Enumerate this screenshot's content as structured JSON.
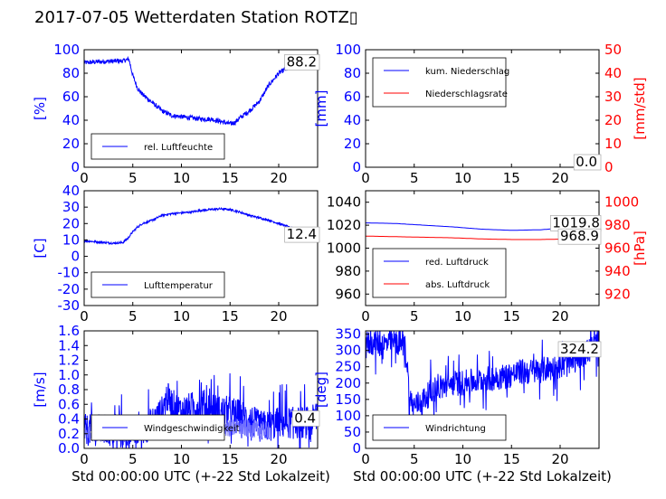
{
  "figure": {
    "title": "2017-07-05 Wetterdaten Station ROTZ▯"
  },
  "colors": {
    "blue": "#0000ff",
    "red": "#ff0000",
    "light_blue": "#7070ff"
  },
  "chart_data": [
    {
      "id": "humidity",
      "type": "line",
      "ylabel": "[%]",
      "xlabel": "",
      "xlim": [
        0,
        24
      ],
      "ylim": [
        0,
        100
      ],
      "xticks": [
        0,
        5,
        10,
        15,
        20
      ],
      "yticks": [
        0,
        20,
        40,
        60,
        80,
        100
      ],
      "ytick_color": "blue",
      "grid": false,
      "legend_position": "lower-left",
      "current_value_label": "88.2",
      "series": [
        {
          "name": "rel. Luftfeuchte",
          "color": "blue",
          "noise": 2,
          "x": [
            0,
            2,
            4,
            4.6,
            5,
            5.5,
            6,
            7,
            8,
            9,
            10,
            11,
            12,
            13,
            14,
            15,
            15.5,
            16,
            17,
            18,
            19,
            20,
            21,
            22,
            23,
            24
          ],
          "y": [
            89,
            90,
            90.5,
            92,
            78,
            67,
            62,
            55,
            48,
            44,
            43,
            42,
            41,
            41,
            39,
            37,
            38,
            42,
            48,
            56,
            70,
            80,
            85,
            87,
            88,
            88.2
          ]
        }
      ]
    },
    {
      "id": "precip",
      "type": "line",
      "ylabel": "[mm]",
      "y2label": "[mm/std]",
      "xlabel": "",
      "xlim": [
        0,
        24
      ],
      "ylim": [
        0,
        100
      ],
      "y2lim": [
        0,
        50
      ],
      "xticks": [
        0,
        5,
        10,
        15,
        20
      ],
      "yticks": [
        0,
        20,
        40,
        60,
        80,
        100
      ],
      "y2ticks": [
        0,
        10,
        20,
        30,
        40,
        50
      ],
      "ytick_color": "blue",
      "y2tick_color": "red",
      "grid": false,
      "legend_position": "upper-left",
      "current_value_label": "0.0",
      "current_value_label_2": "0.0",
      "series": [
        {
          "name": "kum. Niederschlag",
          "color": "blue",
          "axis": "y",
          "x": [
            0,
            24
          ],
          "y": [
            0,
            0
          ]
        },
        {
          "name": "Niederschlagsrate",
          "color": "red",
          "axis": "y2",
          "x": [
            0,
            24
          ],
          "y": [
            0,
            0
          ]
        }
      ]
    },
    {
      "id": "temperature",
      "type": "line",
      "ylabel": "[C]",
      "xlabel": "",
      "xlim": [
        0,
        24
      ],
      "ylim": [
        -30,
        40
      ],
      "xticks": [
        0,
        5,
        10,
        15,
        20
      ],
      "yticks": [
        -30,
        -20,
        -10,
        0,
        10,
        20,
        30,
        40
      ],
      "ytick_color": "blue",
      "grid": false,
      "legend_position": "lower-left",
      "current_value_label": "12.4",
      "series": [
        {
          "name": "Lufttemperatur",
          "color": "blue",
          "noise": 0.6,
          "x": [
            0,
            1,
            2,
            3,
            4,
            4.5,
            5,
            5.5,
            6,
            7,
            8,
            9,
            10,
            11,
            12,
            13,
            14,
            15,
            16,
            17,
            18,
            19,
            20,
            21,
            22,
            23,
            24
          ],
          "y": [
            9.5,
            9,
            8.5,
            8,
            8.5,
            11,
            15,
            18,
            20,
            22,
            25,
            26,
            26.5,
            27,
            28,
            28.5,
            29,
            28.5,
            27,
            25,
            23.5,
            22,
            20,
            18,
            16,
            14,
            12.4
          ]
        }
      ]
    },
    {
      "id": "pressure",
      "type": "line",
      "ylabel": "",
      "y2label": "[hPa]",
      "xlabel": "",
      "xlim": [
        0,
        24
      ],
      "ylim": [
        950,
        1050
      ],
      "y2lim": [
        910,
        1010
      ],
      "xticks": [
        0,
        5,
        10,
        15,
        20
      ],
      "yticks": [
        960,
        980,
        1000,
        1020,
        1040
      ],
      "y2ticks": [
        920,
        940,
        960,
        980,
        1000
      ],
      "ytick_color": "black",
      "y2tick_color": "red",
      "grid": false,
      "legend_position": "lower-left",
      "current_value_label": "1019.8",
      "current_value_label_2": "968.9",
      "series": [
        {
          "name": "red. Luftdruck",
          "color": "blue",
          "axis": "y",
          "x": [
            0,
            3,
            6,
            9,
            12,
            15,
            18,
            21,
            24
          ],
          "y": [
            1022,
            1021.5,
            1020,
            1018.5,
            1016.5,
            1015.5,
            1016,
            1018,
            1019.8
          ]
        },
        {
          "name": "abs. Luftdruck",
          "color": "red",
          "axis": "y2",
          "x": [
            0,
            3,
            6,
            9,
            12,
            15,
            18,
            21,
            24
          ],
          "y": [
            970.5,
            970,
            969.5,
            969,
            968,
            967.5,
            967.5,
            968,
            968.9
          ]
        }
      ]
    },
    {
      "id": "wind",
      "type": "line",
      "ylabel": "[m/s]",
      "xlabel": "Std 00:00:00 UTC (+-22 Std Lokalzeit)",
      "xlim": [
        0,
        24
      ],
      "ylim": [
        0,
        1.6
      ],
      "xticks": [
        0,
        5,
        10,
        15,
        20
      ],
      "yticks": [
        0,
        0.2,
        0.4,
        0.6,
        0.8,
        1.0,
        1.2,
        1.4,
        1.6
      ],
      "ytick_labels": [
        "0.0",
        "0.2",
        "0.4",
        "0.6",
        "0.8",
        "1.0",
        "1.2",
        "1.4",
        "1.6"
      ],
      "ytick_color": "blue",
      "grid": false,
      "legend_position": "lower-left",
      "current_value_label": "0.4",
      "series": [
        {
          "name": "Windgeschwindigkeit",
          "color": "blue",
          "noise": 0.22,
          "spiky": true,
          "x": [
            0,
            2,
            4,
            6,
            7,
            8,
            8.5,
            9,
            10,
            11,
            12,
            13,
            14,
            15,
            16,
            17,
            18,
            19,
            20,
            21,
            22,
            23,
            24
          ],
          "y": [
            0.25,
            0.25,
            0.2,
            0.25,
            0.35,
            0.5,
            0.7,
            0.6,
            0.5,
            0.55,
            0.6,
            0.55,
            0.5,
            0.5,
            0.45,
            0.4,
            0.3,
            0.3,
            0.35,
            0.35,
            0.35,
            0.35,
            0.4
          ]
        },
        {
          "name": "",
          "color": "light_blue",
          "noise": 0.12,
          "x": [
            0,
            4,
            8,
            12,
            16,
            18,
            19
          ],
          "y": [
            0.22,
            0.2,
            0.25,
            0.28,
            0.28,
            0.25,
            0.25
          ]
        }
      ]
    },
    {
      "id": "winddir",
      "type": "line",
      "ylabel": "[deg]",
      "xlabel": "Std 00:00:00 UTC (+-22 Std Lokalzeit)",
      "xlim": [
        0,
        24
      ],
      "ylim": [
        0,
        360
      ],
      "xticks": [
        0,
        5,
        10,
        15,
        20
      ],
      "yticks": [
        0,
        50,
        100,
        150,
        200,
        250,
        300,
        350
      ],
      "ytick_color": "blue",
      "grid": false,
      "legend_position": "lower-left",
      "current_value_label": "324.2",
      "series": [
        {
          "name": "Windrichtung",
          "color": "blue",
          "noise": 40,
          "spiky": true,
          "x": [
            0,
            1,
            2,
            3,
            4,
            4.3,
            4.5,
            5,
            6,
            7,
            8,
            9,
            10,
            11,
            12,
            13,
            14,
            15,
            16,
            17,
            18,
            19,
            20,
            21,
            22,
            23,
            24
          ],
          "y": [
            320,
            325,
            320,
            325,
            320,
            250,
            150,
            130,
            150,
            180,
            190,
            200,
            200,
            205,
            210,
            215,
            220,
            225,
            235,
            235,
            240,
            245,
            250,
            260,
            280,
            300,
            324.2
          ]
        }
      ]
    }
  ]
}
